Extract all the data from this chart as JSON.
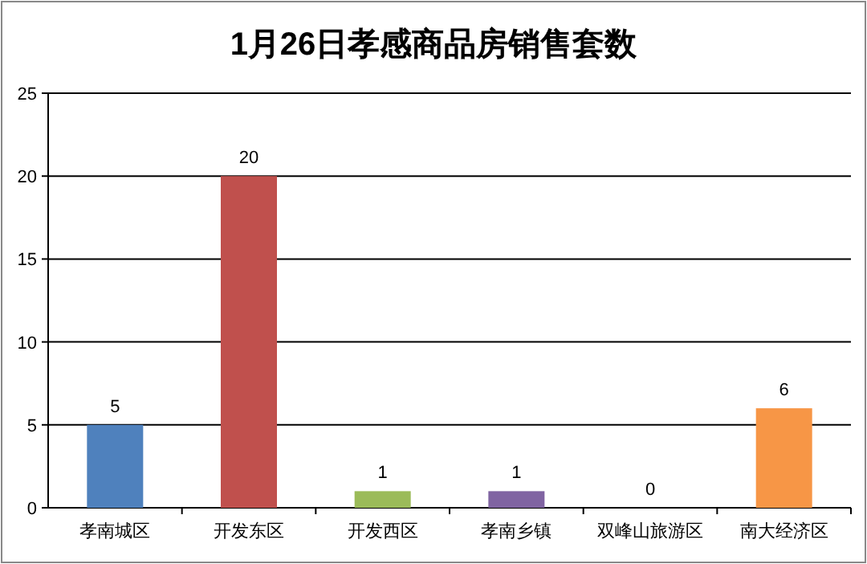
{
  "chart_data": {
    "type": "bar",
    "title": "1月26日孝感商品房销售套数",
    "categories": [
      "孝南城区",
      "开发东区",
      "开发西区",
      "孝南乡镇",
      "双峰山旅游区",
      "南大经济区"
    ],
    "values": [
      5,
      20,
      1,
      1,
      0,
      6
    ],
    "colors": [
      "#4f81bd",
      "#c0504d",
      "#9bbb59",
      "#8064a2",
      "#4bacc6",
      "#f79646"
    ],
    "ylim": [
      0,
      25
    ],
    "yticks": [
      0,
      5,
      10,
      15,
      20,
      25
    ],
    "grid": "y",
    "data_labels": true
  }
}
